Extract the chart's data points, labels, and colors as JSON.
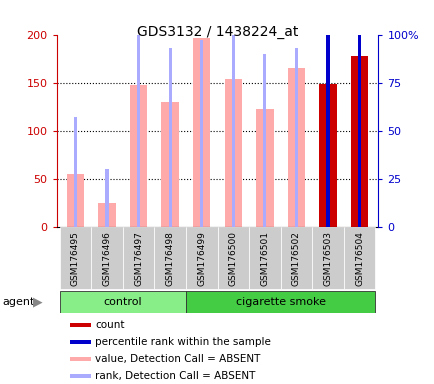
{
  "title": "GDS3132 / 1438224_at",
  "samples": [
    "GSM176495",
    "GSM176496",
    "GSM176497",
    "GSM176498",
    "GSM176499",
    "GSM176500",
    "GSM176501",
    "GSM176502",
    "GSM176503",
    "GSM176504"
  ],
  "value_absent": [
    55,
    25,
    147,
    130,
    196,
    154,
    122,
    165,
    null,
    null
  ],
  "rank_absent": [
    57,
    30,
    100,
    93,
    97,
    105,
    90,
    93,
    null,
    null
  ],
  "count_present": [
    null,
    null,
    null,
    null,
    null,
    null,
    null,
    null,
    148,
    178
  ],
  "percentile_present": [
    null,
    null,
    null,
    null,
    null,
    null,
    null,
    null,
    101,
    113
  ],
  "ylim_left": [
    0,
    200
  ],
  "ylim_right": [
    0,
    100
  ],
  "yticks_left": [
    0,
    50,
    100,
    150,
    200
  ],
  "yticks_right": [
    0,
    25,
    50,
    75,
    100
  ],
  "ytick_labels_left": [
    "0",
    "50",
    "100",
    "150",
    "200"
  ],
  "ytick_labels_right": [
    "0",
    "25",
    "50",
    "75",
    "100%"
  ],
  "left_axis_color": "#cc0000",
  "right_axis_color": "#0000cc",
  "value_absent_color": "#ffaaaa",
  "rank_absent_color": "#aaaaff",
  "count_present_color": "#cc0000",
  "percentile_present_color": "#0000cc",
  "control_color": "#88ee88",
  "smoke_color": "#44cc44",
  "legend_items": [
    {
      "label": "count",
      "color": "#cc0000"
    },
    {
      "label": "percentile rank within the sample",
      "color": "#0000cc"
    },
    {
      "label": "value, Detection Call = ABSENT",
      "color": "#ffaaaa"
    },
    {
      "label": "rank, Detection Call = ABSENT",
      "color": "#aaaaff"
    }
  ]
}
